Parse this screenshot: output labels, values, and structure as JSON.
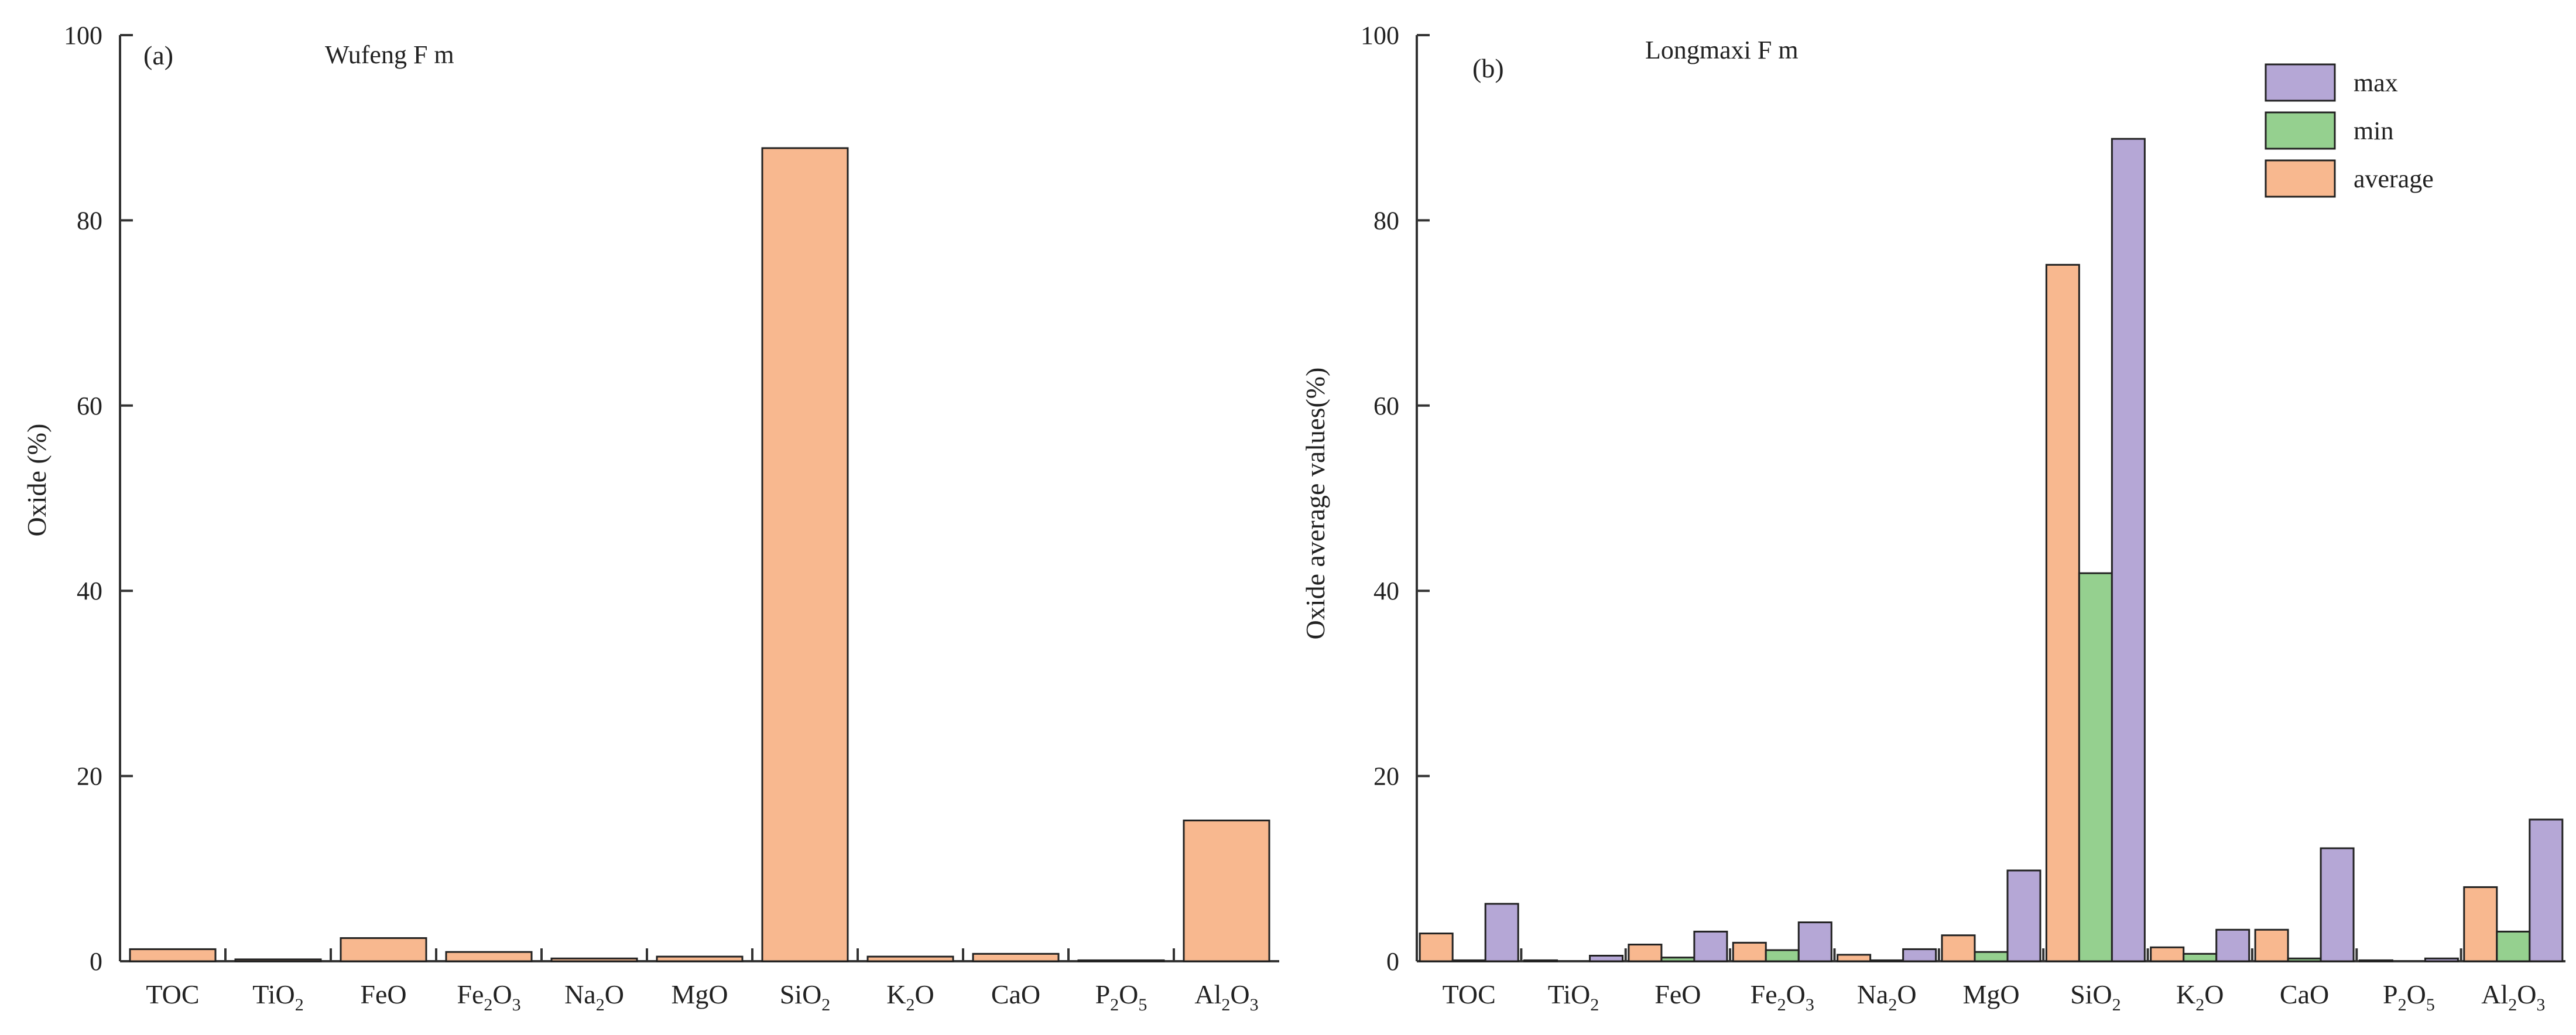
{
  "chart_data": [
    {
      "panel": "(a)",
      "type": "bar",
      "title": "Wufeng F m",
      "ylabel": "Oxide (%)",
      "xlabel": "",
      "ylim": [
        0,
        100
      ],
      "yticks": [
        0,
        20,
        40,
        60,
        80,
        100
      ],
      "categories": [
        {
          "base": "TOC",
          "sub": ""
        },
        {
          "base": "TiO",
          "sub": "2"
        },
        {
          "base": "FeO",
          "sub": ""
        },
        {
          "base": "Fe",
          "sub": "2",
          "tail": "O",
          "sub2": "3"
        },
        {
          "base": "Na",
          "sub": "2",
          "tail": "O"
        },
        {
          "base": "MgO",
          "sub": ""
        },
        {
          "base": "SiO",
          "sub": "2"
        },
        {
          "base": "K",
          "sub": "2",
          "tail": "O"
        },
        {
          "base": "CaO",
          "sub": ""
        },
        {
          "base": "P",
          "sub": "2",
          "tail": "O",
          "sub2": "5"
        },
        {
          "base": "Al",
          "sub": "2",
          "tail": "O",
          "sub2": "3"
        }
      ],
      "series": [
        {
          "name": "average",
          "color": "#f8b88f",
          "values": [
            1.3,
            0.2,
            2.5,
            1.0,
            0.3,
            0.5,
            87.8,
            0.5,
            0.8,
            0.1,
            15.2
          ]
        }
      ]
    },
    {
      "panel": "(b)",
      "type": "bar",
      "title": "Longmaxi F m",
      "ylabel": "Oxide average values(%)",
      "xlabel": "",
      "ylim": [
        0,
        100
      ],
      "yticks": [
        0,
        20,
        40,
        60,
        80,
        100
      ],
      "legend_position": "top-right",
      "categories": [
        {
          "base": "TOC",
          "sub": ""
        },
        {
          "base": "TiO",
          "sub": "2"
        },
        {
          "base": "FeO",
          "sub": ""
        },
        {
          "base": "Fe",
          "sub": "2",
          "tail": "O",
          "sub2": "3"
        },
        {
          "base": "Na",
          "sub": "2",
          "tail": "O"
        },
        {
          "base": "MgO",
          "sub": ""
        },
        {
          "base": "SiO",
          "sub": "2"
        },
        {
          "base": "K",
          "sub": "2",
          "tail": "O"
        },
        {
          "base": "CaO",
          "sub": ""
        },
        {
          "base": "P",
          "sub": "2",
          "tail": "O",
          "sub2": "5"
        },
        {
          "base": "Al",
          "sub": "2",
          "tail": "O",
          "sub2": "3"
        }
      ],
      "series": [
        {
          "name": "average",
          "color": "#f8b88f",
          "values": [
            3.0,
            0.1,
            1.8,
            2.0,
            0.7,
            2.8,
            75.2,
            1.5,
            3.4,
            0.1,
            8.0
          ]
        },
        {
          "name": "min",
          "color": "#95d08f",
          "values": [
            0.1,
            0.0,
            0.4,
            1.2,
            0.1,
            1.0,
            41.9,
            0.8,
            0.3,
            0.0,
            3.2
          ]
        },
        {
          "name": "max",
          "color": "#b5a7d6",
          "values": [
            6.2,
            0.6,
            3.2,
            4.2,
            1.3,
            9.8,
            88.8,
            3.4,
            12.2,
            0.3,
            15.3
          ]
        }
      ],
      "legend_order": [
        "max",
        "min",
        "average"
      ]
    }
  ]
}
